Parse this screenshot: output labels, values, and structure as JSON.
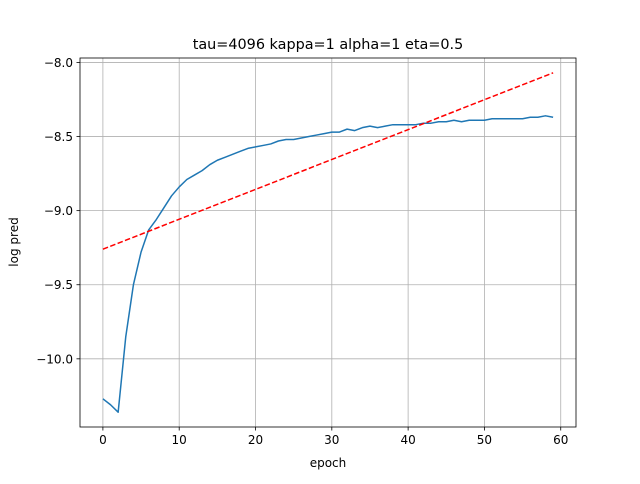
{
  "chart_data": {
    "type": "line",
    "title": "tau=4096 kappa=1 alpha=1 eta=0.5",
    "xlabel": "epoch",
    "ylabel": "log pred",
    "xlim": [
      -3,
      62
    ],
    "ylim": [
      -10.46,
      -7.97
    ],
    "xticks": [
      0,
      10,
      20,
      30,
      40,
      50,
      60
    ],
    "yticks": [
      -10.0,
      -9.5,
      -9.0,
      -8.5,
      -8.0
    ],
    "ytick_labels": [
      "−10.0",
      "−9.5",
      "−9.0",
      "−8.5",
      "−8.0"
    ],
    "grid": true,
    "series": [
      {
        "color": "#1f77b4",
        "style": "solid",
        "x": [
          0,
          1,
          2,
          3,
          4,
          5,
          6,
          7,
          8,
          9,
          10,
          11,
          12,
          13,
          14,
          15,
          16,
          17,
          18,
          19,
          20,
          21,
          22,
          23,
          24,
          25,
          26,
          27,
          28,
          29,
          30,
          31,
          32,
          33,
          34,
          35,
          36,
          37,
          38,
          39,
          40,
          41,
          42,
          43,
          44,
          45,
          46,
          47,
          48,
          49,
          50,
          51,
          52,
          53,
          54,
          55,
          56,
          57,
          58,
          59
        ],
        "y": [
          -10.27,
          -10.31,
          -10.36,
          -9.85,
          -9.5,
          -9.28,
          -9.13,
          -9.06,
          -8.98,
          -8.9,
          -8.84,
          -8.79,
          -8.76,
          -8.73,
          -8.69,
          -8.66,
          -8.64,
          -8.62,
          -8.6,
          -8.58,
          -8.57,
          -8.56,
          -8.55,
          -8.53,
          -8.52,
          -8.52,
          -8.51,
          -8.5,
          -8.49,
          -8.48,
          -8.47,
          -8.47,
          -8.45,
          -8.46,
          -8.44,
          -8.43,
          -8.44,
          -8.43,
          -8.42,
          -8.42,
          -8.42,
          -8.42,
          -8.41,
          -8.41,
          -8.4,
          -8.4,
          -8.39,
          -8.4,
          -8.39,
          -8.39,
          -8.39,
          -8.38,
          -8.38,
          -8.38,
          -8.38,
          -8.38,
          -8.37,
          -8.37,
          -8.36,
          -8.37
        ]
      },
      {
        "color": "#ff0000",
        "style": "dashed",
        "x": [
          0,
          59
        ],
        "y": [
          -9.26,
          -8.07
        ]
      }
    ]
  }
}
